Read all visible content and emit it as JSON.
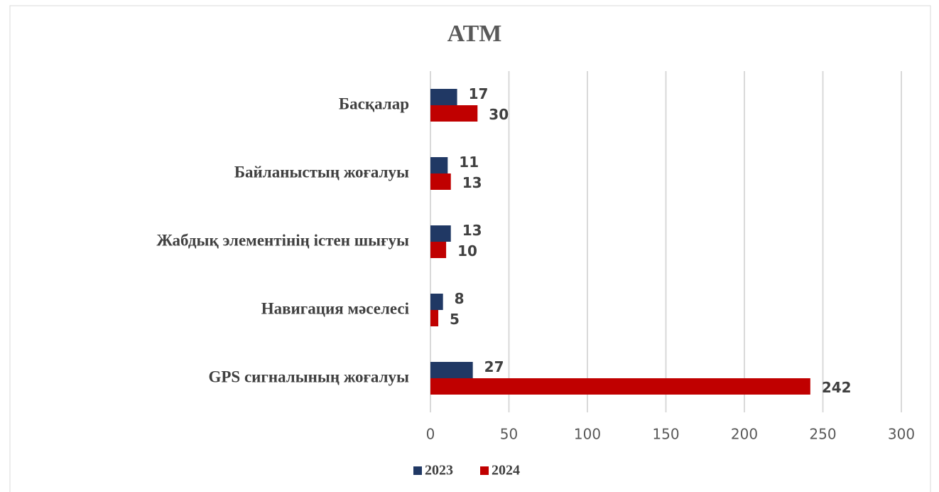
{
  "chart_data": {
    "type": "bar",
    "orientation": "horizontal",
    "title": "ATM",
    "categories": [
      "Басқалар",
      "Байланыстың жоғалуы",
      "Жабдық элементінің істен шығуы",
      "Навигация мәселесі",
      "GPS сигналының жоғалуы"
    ],
    "series": [
      {
        "name": "2023",
        "color": "#203864",
        "values": [
          17,
          11,
          13,
          8,
          27
        ]
      },
      {
        "name": "2024",
        "color": "#c00000",
        "values": [
          30,
          13,
          10,
          5,
          242
        ]
      }
    ],
    "xlim": [
      0,
      300
    ],
    "xticks": [
      0,
      50,
      100,
      150,
      200,
      250,
      300
    ],
    "grid": true,
    "legend": "bottom"
  }
}
